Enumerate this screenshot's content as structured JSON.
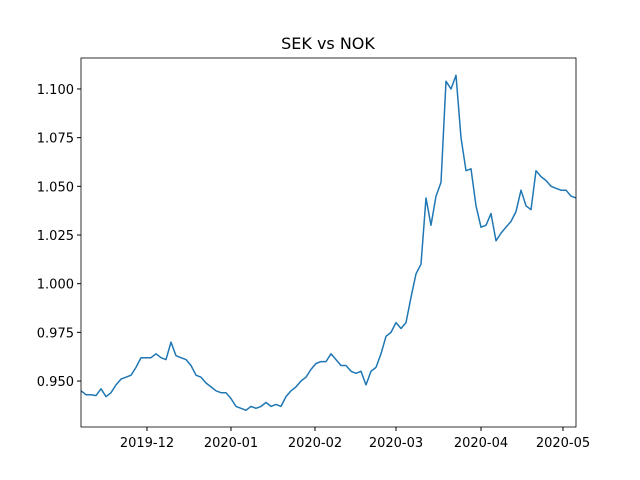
{
  "chart_data": {
    "type": "line",
    "title": "SEK vs NOK",
    "color": "#1f77b4",
    "values": [
      0.945,
      0.943,
      0.943,
      0.9425,
      0.946,
      0.942,
      0.944,
      0.948,
      0.951,
      0.952,
      0.953,
      0.957,
      0.962,
      0.962,
      0.962,
      0.964,
      0.962,
      0.961,
      0.97,
      0.963,
      0.962,
      0.961,
      0.958,
      0.953,
      0.952,
      0.949,
      0.947,
      0.945,
      0.944,
      0.944,
      0.941,
      0.937,
      0.936,
      0.935,
      0.937,
      0.936,
      0.937,
      0.939,
      0.937,
      0.938,
      0.937,
      0.942,
      0.945,
      0.947,
      0.95,
      0.952,
      0.956,
      0.959,
      0.96,
      0.96,
      0.964,
      0.961,
      0.958,
      0.958,
      0.955,
      0.954,
      0.955,
      0.948,
      0.955,
      0.957,
      0.964,
      0.973,
      0.975,
      0.98,
      0.977,
      0.98,
      0.993,
      1.005,
      1.01,
      1.044,
      1.03,
      1.045,
      1.052,
      1.104,
      1.1,
      1.107,
      1.075,
      1.058,
      1.059,
      1.04,
      1.029,
      1.03,
      1.036,
      1.022,
      1.026,
      1.029,
      1.032,
      1.037,
      1.048,
      1.04,
      1.038,
      1.058,
      1.055,
      1.053,
      1.05,
      1.049,
      1.048,
      1.048,
      1.045,
      1.044
    ],
    "xlim": [
      0,
      99
    ],
    "xticks": [
      {
        "value": 13.2,
        "label": "2019-12"
      },
      {
        "value": 30,
        "label": "2020-01"
      },
      {
        "value": 46.8,
        "label": "2020-02"
      },
      {
        "value": 63,
        "label": "2020-03"
      },
      {
        "value": 80,
        "label": "2020-04"
      },
      {
        "value": 96.4,
        "label": "2020-05"
      }
    ],
    "ylim": [
      0.9264,
      1.1159
    ],
    "yticks": [
      {
        "value": 0.95,
        "label": "0.950"
      },
      {
        "value": 0.975,
        "label": "0.975"
      },
      {
        "value": 1.0,
        "label": "1.000"
      },
      {
        "value": 1.025,
        "label": "1.025"
      },
      {
        "value": 1.05,
        "label": "1.050"
      },
      {
        "value": 1.075,
        "label": "1.075"
      },
      {
        "value": 1.1,
        "label": "1.100"
      }
    ]
  }
}
